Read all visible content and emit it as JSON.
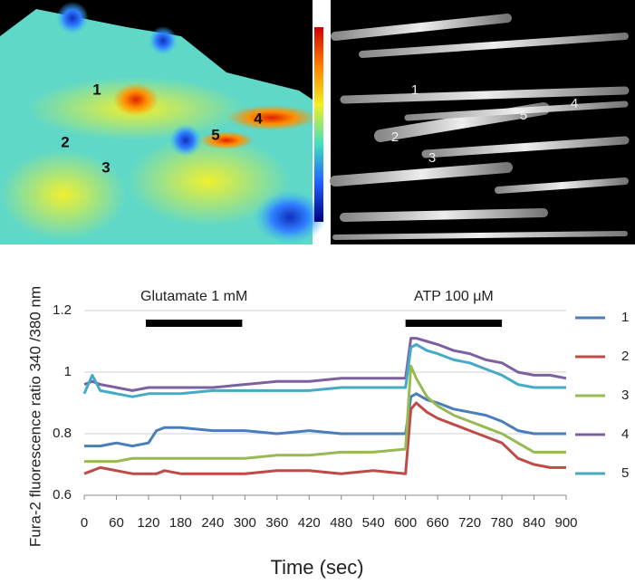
{
  "images": {
    "left_labels": [
      "1",
      "2",
      "3",
      "4",
      "5"
    ],
    "right_labels": [
      "1",
      "2",
      "3",
      "4",
      "5"
    ]
  },
  "chart_data": {
    "type": "line",
    "y_label": "Fura-2 fluorescence ratio 340 /380 nm",
    "x_label": "Time (sec)",
    "annotations": [
      {
        "text": "Glutamate 1 mM",
        "x_range": [
          115,
          295
        ]
      },
      {
        "text": "ATP 100 μM",
        "x_range": [
          600,
          780
        ]
      }
    ],
    "x": [
      0,
      15,
      30,
      60,
      90,
      120,
      135,
      150,
      180,
      240,
      300,
      360,
      420,
      480,
      540,
      600,
      610,
      620,
      640,
      660,
      690,
      720,
      750,
      780,
      810,
      840,
      870,
      900
    ],
    "series": [
      {
        "name": "1",
        "color": "#4a7ebb",
        "values": [
          0.76,
          0.76,
          0.76,
          0.77,
          0.76,
          0.77,
          0.81,
          0.82,
          0.82,
          0.81,
          0.81,
          0.8,
          0.81,
          0.8,
          0.8,
          0.8,
          0.92,
          0.93,
          0.91,
          0.9,
          0.88,
          0.87,
          0.86,
          0.84,
          0.81,
          0.8,
          0.8,
          0.8
        ]
      },
      {
        "name": "2",
        "color": "#be4b48",
        "values": [
          0.67,
          0.68,
          0.69,
          0.68,
          0.67,
          0.67,
          0.67,
          0.68,
          0.67,
          0.67,
          0.67,
          0.68,
          0.68,
          0.67,
          0.68,
          0.67,
          0.88,
          0.9,
          0.87,
          0.85,
          0.83,
          0.81,
          0.79,
          0.77,
          0.72,
          0.7,
          0.69,
          0.69
        ]
      },
      {
        "name": "3",
        "color": "#98b954",
        "values": [
          0.71,
          0.71,
          0.71,
          0.71,
          0.72,
          0.72,
          0.72,
          0.72,
          0.72,
          0.72,
          0.72,
          0.73,
          0.73,
          0.74,
          0.74,
          0.75,
          1.02,
          0.98,
          0.92,
          0.89,
          0.86,
          0.84,
          0.82,
          0.8,
          0.77,
          0.74,
          0.74,
          0.74
        ]
      },
      {
        "name": "4",
        "color": "#7d60a0",
        "values": [
          0.96,
          0.97,
          0.96,
          0.95,
          0.94,
          0.95,
          0.95,
          0.95,
          0.95,
          0.95,
          0.96,
          0.97,
          0.97,
          0.98,
          0.98,
          0.98,
          1.11,
          1.11,
          1.1,
          1.09,
          1.07,
          1.06,
          1.04,
          1.03,
          1.0,
          0.99,
          0.99,
          0.98
        ]
      },
      {
        "name": "5",
        "color": "#46aac5",
        "values": [
          0.93,
          0.99,
          0.94,
          0.93,
          0.92,
          0.93,
          0.93,
          0.93,
          0.93,
          0.94,
          0.94,
          0.94,
          0.94,
          0.95,
          0.95,
          0.95,
          1.08,
          1.09,
          1.07,
          1.06,
          1.04,
          1.03,
          1.01,
          0.99,
          0.96,
          0.95,
          0.95,
          0.95
        ]
      }
    ],
    "xlim": [
      0,
      900
    ],
    "xticks": [
      0,
      60,
      120,
      180,
      240,
      300,
      360,
      420,
      480,
      540,
      600,
      660,
      720,
      780,
      840,
      900
    ],
    "ylim": [
      0.6,
      1.2
    ],
    "yticks": [
      0.6,
      0.8,
      1,
      1.2
    ],
    "grid": true,
    "legend": "right"
  }
}
